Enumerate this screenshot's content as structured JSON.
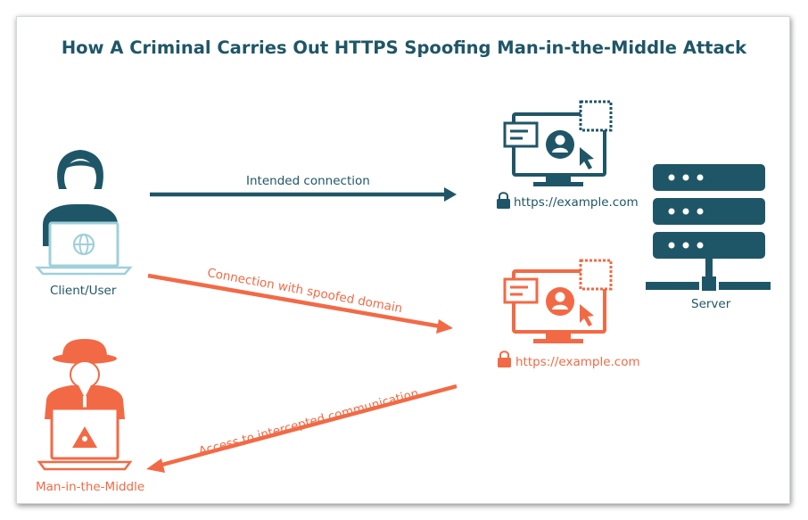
{
  "title": "How A Criminal Carries Out HTTPS Spoofing Man-in-the-Middle Attack",
  "nodes": {
    "client": "Client/User",
    "attacker": "Man-in-the-Middle",
    "server": "Server",
    "legit_site_url": "https://example.com",
    "spoofed_site_url": "https://example.com"
  },
  "connections": {
    "intended": "Intended connection",
    "spoofed": "Connection with spoofed domain",
    "intercepted": "Access to intercepted communication"
  },
  "colors": {
    "teal": "#1f5667",
    "orange": "#f26a45",
    "light_teal": "#9fd0da"
  }
}
